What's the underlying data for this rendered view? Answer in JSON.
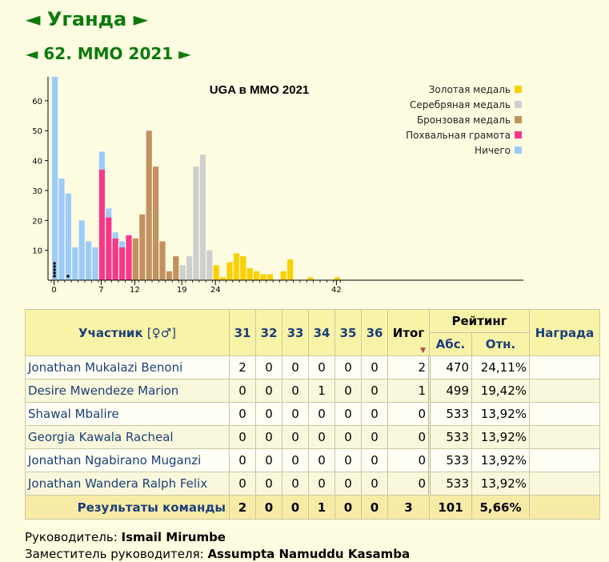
{
  "header": {
    "country": "Уганда",
    "olympiad": "62. ММО 2021",
    "prev_arrow": "◄",
    "next_arrow": "►"
  },
  "colors": {
    "gold": "#fdd000",
    "silver": "#cfcfcf",
    "bronze": "#c3915f",
    "honorable": "#f7378a",
    "nothing": "#9dcbfa",
    "title_green": "#0b7a0b",
    "link_blue": "#1c3f7a"
  },
  "chart_data": {
    "type": "bar",
    "title": "UGA в ММО 2021",
    "x": [
      0,
      1,
      2,
      3,
      4,
      5,
      6,
      7,
      8,
      9,
      10,
      11,
      12,
      13,
      14,
      15,
      16,
      17,
      18,
      19,
      20,
      21,
      22,
      23,
      24,
      25,
      26,
      27,
      28,
      29,
      30,
      31,
      32,
      33,
      34,
      35,
      36,
      37,
      38,
      39,
      40,
      41,
      42
    ],
    "series": [
      {
        "name": "Ничего",
        "color_key": "nothing",
        "values": [
          68,
          34,
          29,
          11,
          20,
          13,
          11,
          6,
          3,
          2,
          2,
          0,
          0,
          0,
          0,
          0,
          0,
          0,
          0,
          0,
          0,
          0,
          0,
          0,
          0,
          0,
          0,
          0,
          0,
          0,
          0,
          0,
          0,
          0,
          0,
          0,
          0,
          0,
          0,
          0,
          0,
          0,
          0
        ]
      },
      {
        "name": "Похвальная грамота",
        "color_key": "honorable",
        "values": [
          0,
          0,
          0,
          0,
          0,
          0,
          0,
          37,
          21,
          14,
          11,
          15,
          0,
          0,
          0,
          0,
          0,
          0,
          0,
          0,
          0,
          0,
          0,
          0,
          0,
          0,
          0,
          0,
          0,
          0,
          0,
          0,
          0,
          0,
          0,
          0,
          0,
          0,
          0,
          0,
          0,
          0,
          0
        ]
      },
      {
        "name": "Бронзовая медаль",
        "color_key": "bronze",
        "values": [
          0,
          0,
          0,
          0,
          0,
          0,
          0,
          0,
          0,
          0,
          0,
          0,
          14,
          22,
          50,
          38,
          13,
          3,
          8,
          0,
          0,
          0,
          0,
          0,
          0,
          0,
          0,
          0,
          0,
          0,
          0,
          0,
          0,
          0,
          0,
          0,
          0,
          0,
          0,
          0,
          0,
          0,
          0
        ]
      },
      {
        "name": "Серебряная медаль",
        "color_key": "silver",
        "values": [
          0,
          0,
          0,
          0,
          0,
          0,
          0,
          0,
          0,
          0,
          0,
          0,
          0,
          0,
          0,
          0,
          0,
          0,
          0,
          5,
          8,
          38,
          42,
          10,
          0,
          0,
          0,
          0,
          0,
          0,
          0,
          0,
          0,
          0,
          0,
          0,
          0,
          0,
          0,
          0,
          0,
          0,
          0
        ]
      },
      {
        "name": "Золотая медаль",
        "color_key": "gold",
        "values": [
          0,
          0,
          0,
          0,
          0,
          0,
          0,
          0,
          0,
          0,
          0,
          0,
          0,
          0,
          0,
          0,
          0,
          0,
          0,
          0,
          0,
          0,
          0,
          0,
          5,
          1,
          6,
          9,
          8,
          4,
          3,
          2,
          2,
          0,
          3,
          7,
          0,
          0,
          1,
          0,
          0,
          0,
          1
        ]
      }
    ],
    "team_scores": [
      0,
      0,
      0,
      0,
      0,
      2
    ],
    "yticks": [
      10,
      20,
      30,
      40,
      50,
      60
    ],
    "xticks": [
      0,
      7,
      12,
      19,
      24,
      42
    ],
    "ylim": [
      0,
      68
    ],
    "legend_order": [
      "Золотая медаль",
      "Серебряная медаль",
      "Бронзовая медаль",
      "Похвальная грамота",
      "Ничего"
    ],
    "legend_placement": "top-right",
    "grid": false
  },
  "table": {
    "participant_header": "Участник",
    "participant_gender": "[♀♂]",
    "problem_headers": [
      "31",
      "32",
      "33",
      "34",
      "35",
      "36"
    ],
    "total_header": "Итог",
    "sort_marker": "▼",
    "rating_header": "Рейтинг",
    "rating_abs": "Абс.",
    "rating_rel": "Отн.",
    "award_header": "Награда",
    "rows": [
      {
        "name": "Jonathan Mukalazi Benoni",
        "scores": [
          "2",
          "0",
          "0",
          "0",
          "0",
          "0"
        ],
        "total": "2",
        "abs": "470",
        "rel": "24,11%",
        "award": ""
      },
      {
        "name": "Desire Mwendeze Marion",
        "scores": [
          "0",
          "0",
          "0",
          "1",
          "0",
          "0"
        ],
        "total": "1",
        "abs": "499",
        "rel": "19,42%",
        "award": ""
      },
      {
        "name": "Shawal Mbalire",
        "scores": [
          "0",
          "0",
          "0",
          "0",
          "0",
          "0"
        ],
        "total": "0",
        "abs": "533",
        "rel": "13,92%",
        "award": ""
      },
      {
        "name": "Georgia Kawala Racheal",
        "scores": [
          "0",
          "0",
          "0",
          "0",
          "0",
          "0"
        ],
        "total": "0",
        "abs": "533",
        "rel": "13,92%",
        "award": ""
      },
      {
        "name": "Jonathan Ngabirano Muganzi",
        "scores": [
          "0",
          "0",
          "0",
          "0",
          "0",
          "0"
        ],
        "total": "0",
        "abs": "533",
        "rel": "13,92%",
        "award": ""
      },
      {
        "name": "Jonathan Wandera Ralph Felix",
        "scores": [
          "0",
          "0",
          "0",
          "0",
          "0",
          "0"
        ],
        "total": "0",
        "abs": "533",
        "rel": "13,92%",
        "award": ""
      }
    ],
    "team": {
      "label": "Результаты команды",
      "scores": [
        "2",
        "0",
        "0",
        "1",
        "0",
        "0"
      ],
      "total": "3",
      "abs": "101",
      "rel": "5,66%",
      "award": ""
    }
  },
  "leaders": {
    "leader_label": "Руководитель:",
    "leader_name": "Ismail Mirumbe",
    "deputy_label": "Заместитель руководителя:",
    "deputy_name": "Assumpta Namuddu Kasamba"
  }
}
